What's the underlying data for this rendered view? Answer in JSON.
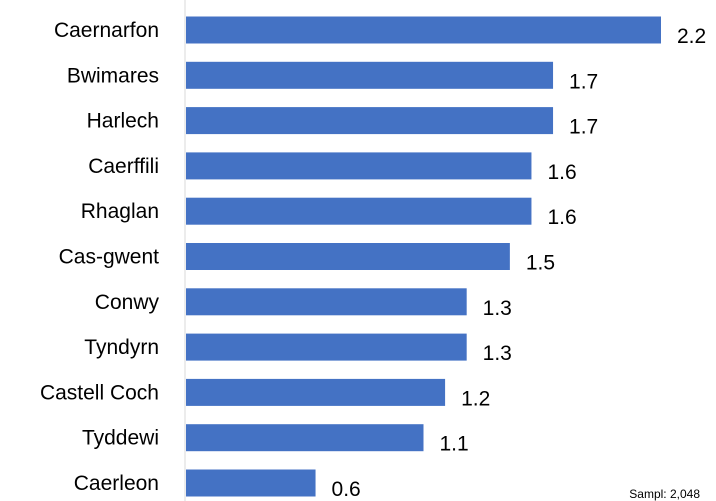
{
  "chart_data": {
    "type": "bar",
    "orientation": "horizontal",
    "categories": [
      "Caernarfon",
      "Bwimares",
      "Harlech",
      "Caerffili",
      "Rhaglan",
      "Cas-gwent",
      "Conwy",
      "Tyndyrn",
      "Castell Coch",
      "Tyddewi",
      "Caerleon"
    ],
    "values": [
      2.2,
      1.7,
      1.7,
      1.6,
      1.6,
      1.5,
      1.3,
      1.3,
      1.2,
      1.1,
      0.6
    ],
    "value_labels": [
      "2.2",
      "1.7",
      "1.7",
      "1.6",
      "1.6",
      "1.5",
      "1.3",
      "1.3",
      "1.2",
      "1.1",
      "0.6"
    ],
    "xlim": [
      0,
      2.2
    ],
    "grid": false,
    "legend": "none",
    "bar_color": "#4472c4",
    "axis_color": "#d9d9d9"
  },
  "note": "Sampl: 2,048"
}
